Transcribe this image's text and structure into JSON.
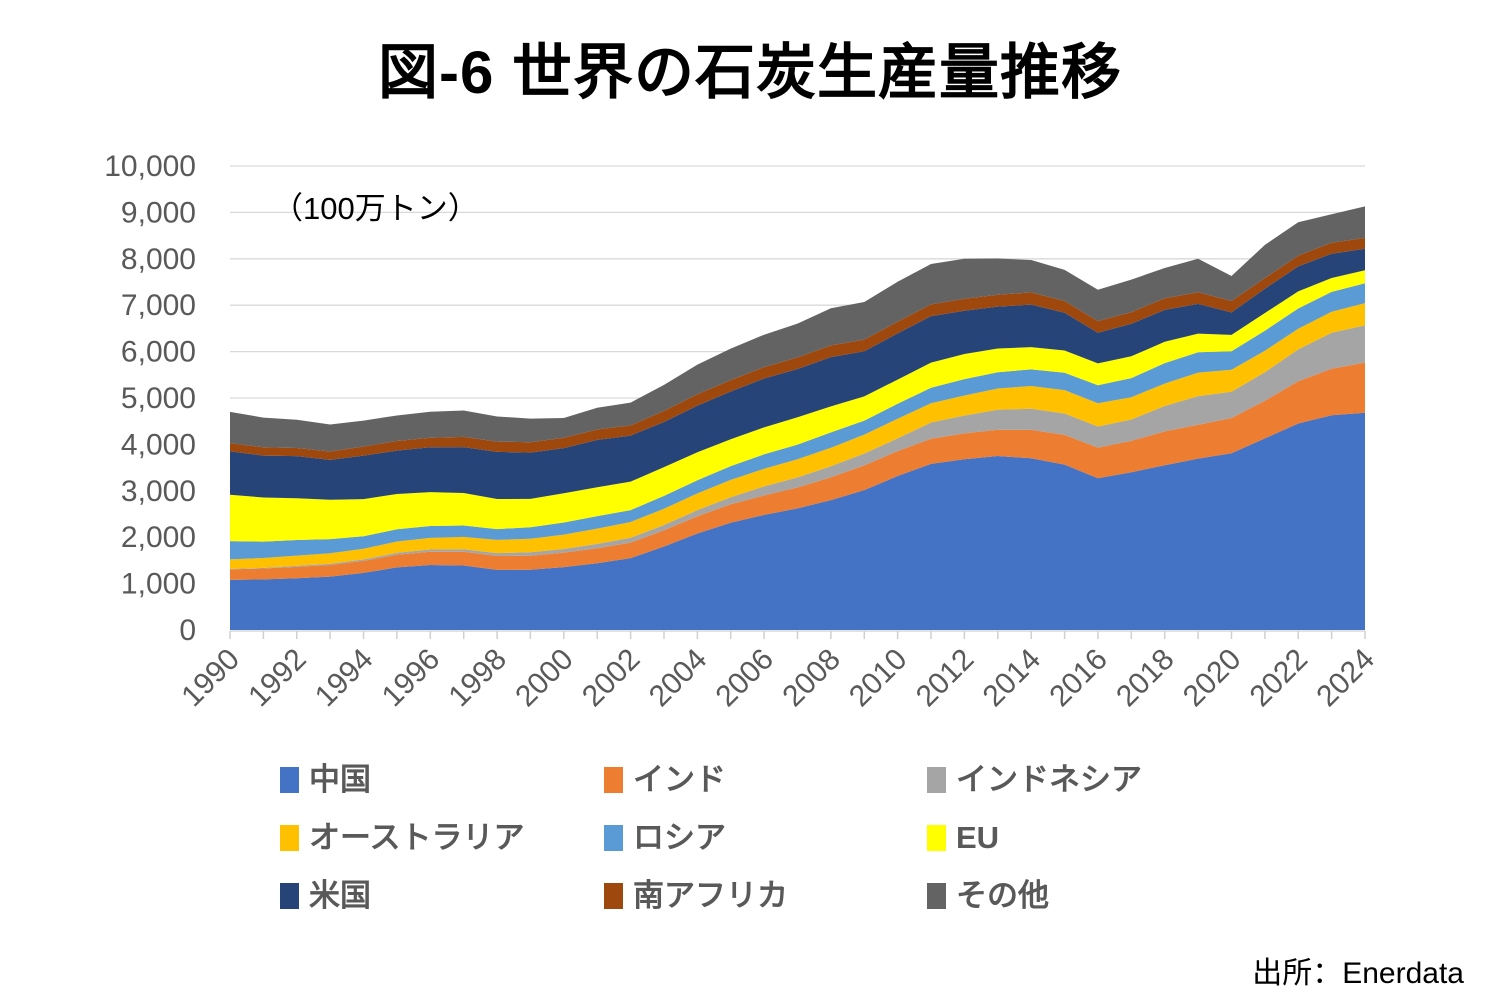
{
  "title": "図-6 世界の石炭生産量推移",
  "unit_label": "（100万トン）",
  "source": "出所：Enerdata",
  "colors": {
    "grid": "#D9D9D9",
    "axis": "#D0D0D0",
    "tick": "#D0D0D0",
    "axis_label": "#595959"
  },
  "chart_data": {
    "type": "area",
    "stacked": true,
    "title": "図-6 世界の石炭生産量推移",
    "unit": "100万トン",
    "grid": "horizontal",
    "legend_position": "bottom",
    "ylim": [
      0,
      10000
    ],
    "y_tick_step": 1000,
    "x_label_step": 2,
    "x": [
      1990,
      1991,
      1992,
      1993,
      1994,
      1995,
      1996,
      1997,
      1998,
      1999,
      2000,
      2001,
      2002,
      2003,
      2004,
      2005,
      2006,
      2007,
      2008,
      2009,
      2010,
      2011,
      2012,
      2013,
      2014,
      2015,
      2016,
      2017,
      2018,
      2019,
      2020,
      2021,
      2022,
      2023,
      2024
    ],
    "series": [
      {
        "key": "china",
        "name": "中国",
        "color": "#4472C4",
        "values": [
          1080,
          1090,
          1115,
          1150,
          1230,
          1350,
          1400,
          1390,
          1295,
          1300,
          1355,
          1440,
          1550,
          1800,
          2080,
          2310,
          2480,
          2620,
          2800,
          3015,
          3320,
          3580,
          3680,
          3750,
          3700,
          3565,
          3270,
          3400,
          3550,
          3695,
          3810,
          4130,
          4450,
          4630,
          4680
        ]
      },
      {
        "key": "india",
        "name": "インド",
        "color": "#ED7D31",
        "values": [
          225,
          235,
          245,
          250,
          260,
          273,
          285,
          297,
          300,
          300,
          313,
          322,
          334,
          350,
          373,
          398,
          420,
          452,
          490,
          532,
          535,
          540,
          557,
          565,
          612,
          640,
          660,
          675,
          730,
          730,
          760,
          811,
          911,
          1000,
          1085
        ]
      },
      {
        "key": "indonesia",
        "name": "インドネシア",
        "color": "#A5A5A5",
        "values": [
          11,
          14,
          23,
          28,
          32,
          41,
          50,
          55,
          62,
          74,
          77,
          93,
          103,
          114,
          132,
          152,
          194,
          217,
          240,
          256,
          275,
          353,
          386,
          430,
          458,
          461,
          456,
          461,
          548,
          616,
          564,
          614,
          687,
          775,
          800
        ]
      },
      {
        "key": "australia",
        "name": "オーストラリア",
        "color": "#FFC000",
        "values": [
          205,
          213,
          220,
          224,
          227,
          243,
          250,
          265,
          285,
          292,
          310,
          330,
          340,
          350,
          360,
          375,
          382,
          392,
          399,
          409,
          424,
          415,
          431,
          459,
          489,
          505,
          503,
          481,
          483,
          506,
          476,
          462,
          443,
          455,
          480
        ]
      },
      {
        "key": "russia",
        "name": "ロシア",
        "color": "#5B9BD5",
        "values": [
          395,
          353,
          337,
          306,
          272,
          263,
          257,
          245,
          232,
          250,
          262,
          270,
          256,
          277,
          284,
          298,
          310,
          314,
          329,
          302,
          322,
          334,
          354,
          352,
          357,
          372,
          386,
          411,
          441,
          440,
          399,
          434,
          437,
          427,
          430
        ]
      },
      {
        "key": "eu",
        "name": "EU",
        "color": "#FFFF00",
        "values": [
          1000,
          950,
          900,
          850,
          800,
          760,
          730,
          700,
          650,
          610,
          630,
          620,
          615,
          620,
          600,
          580,
          580,
          590,
          560,
          520,
          520,
          540,
          540,
          510,
          480,
          480,
          470,
          470,
          460,
          400,
          350,
          380,
          370,
          300,
          280
        ]
      },
      {
        "key": "us",
        "name": "米国",
        "color": "#264478",
        "values": [
          934,
          904,
          908,
          858,
          937,
          937,
          965,
          989,
          1014,
          998,
          974,
          1023,
          992,
          972,
          1008,
          1027,
          1054,
          1041,
          1063,
          975,
          996,
          1004,
          932,
          904,
          918,
          815,
          661,
          702,
          686,
          640,
          485,
          524,
          539,
          523,
          460
        ]
      },
      {
        "key": "south_africa",
        "name": "南アフリカ",
        "color": "#9E480E",
        "values": [
          175,
          178,
          174,
          182,
          196,
          206,
          206,
          220,
          223,
          223,
          224,
          224,
          220,
          239,
          243,
          245,
          245,
          248,
          252,
          250,
          254,
          251,
          259,
          256,
          261,
          252,
          251,
          252,
          253,
          254,
          246,
          229,
          231,
          234,
          235
        ]
      },
      {
        "key": "other",
        "name": "その他",
        "color": "#636363",
        "values": [
          675,
          640,
          610,
          580,
          560,
          550,
          560,
          570,
          540,
          510,
          425,
          470,
          490,
          560,
          640,
          680,
          700,
          730,
          800,
          810,
          860,
          870,
          860,
          780,
          700,
          670,
          675,
          700,
          650,
          720,
          540,
          715,
          720,
          616,
          680
        ]
      }
    ]
  },
  "legend": {
    "items": [
      "中国",
      "インド",
      "インドネシア",
      "オーストラリア",
      "ロシア",
      "EU",
      "米国",
      "南アフリカ",
      "その他"
    ]
  }
}
